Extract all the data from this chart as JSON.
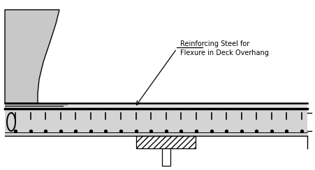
{
  "background_color": "#ffffff",
  "deck_fill": "#d4d4d4",
  "deck_top_fill": "#e8e8e8",
  "parapet_fill": "#c8c8c8",
  "line_color": "#000000",
  "annotation_text_line1": "Reinforcing Steel for",
  "annotation_text_line2": "Flexure in Deck Overhang",
  "fig_w": 4.51,
  "fig_h": 2.44,
  "dpi": 100
}
